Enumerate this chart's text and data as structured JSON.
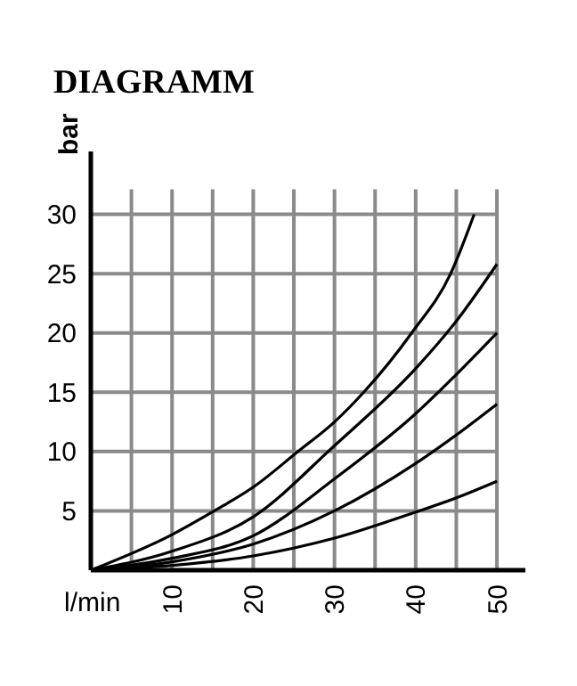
{
  "chart_data": {
    "type": "line",
    "title": "DIAGRAMM",
    "xlabel": "l/min",
    "ylabel": "bar",
    "xlim": [
      0,
      53.5
    ],
    "ylim": [
      0,
      35.3
    ],
    "xticks": [
      {
        "value": 5,
        "label": null
      },
      10,
      {
        "value": 15,
        "label": null
      },
      20,
      {
        "value": 25,
        "label": null
      },
      30,
      {
        "value": 35,
        "label": null
      },
      40,
      {
        "value": 45,
        "label": null
      },
      50
    ],
    "yticks": [
      5,
      10,
      15,
      20,
      25,
      30
    ],
    "grid": true,
    "marker": "none",
    "line_style": "solid",
    "series": [
      {
        "color": "#000000",
        "x": [
          0,
          10,
          15.2,
          20,
          25.5,
          30,
          33.6,
          39.5,
          44.3,
          47.2
        ],
        "values": [
          0,
          3,
          5,
          7,
          10,
          12.5,
          15,
          20,
          25,
          30
        ]
      },
      {
        "color": "#000000",
        "x": [
          0,
          10,
          20,
          30,
          40,
          45,
          50
        ],
        "values": [
          0,
          1.6,
          4.5,
          10.5,
          17,
          21,
          25.8
        ]
      },
      {
        "color": "#000000",
        "x": [
          0,
          10,
          20,
          30,
          40,
          45,
          50
        ],
        "values": [
          0,
          1,
          2.9,
          7.7,
          13.2,
          16.5,
          20
        ]
      },
      {
        "color": "#000000",
        "x": [
          0,
          10,
          20,
          30,
          40,
          45,
          50
        ],
        "values": [
          0,
          0.7,
          2.2,
          5,
          9,
          11.4,
          14
        ]
      },
      {
        "color": "#000000",
        "x": [
          0,
          10,
          20,
          30,
          40,
          45,
          50
        ],
        "values": [
          0,
          0.4,
          1.2,
          2.7,
          4.9,
          6.1,
          7.5
        ]
      }
    ]
  }
}
